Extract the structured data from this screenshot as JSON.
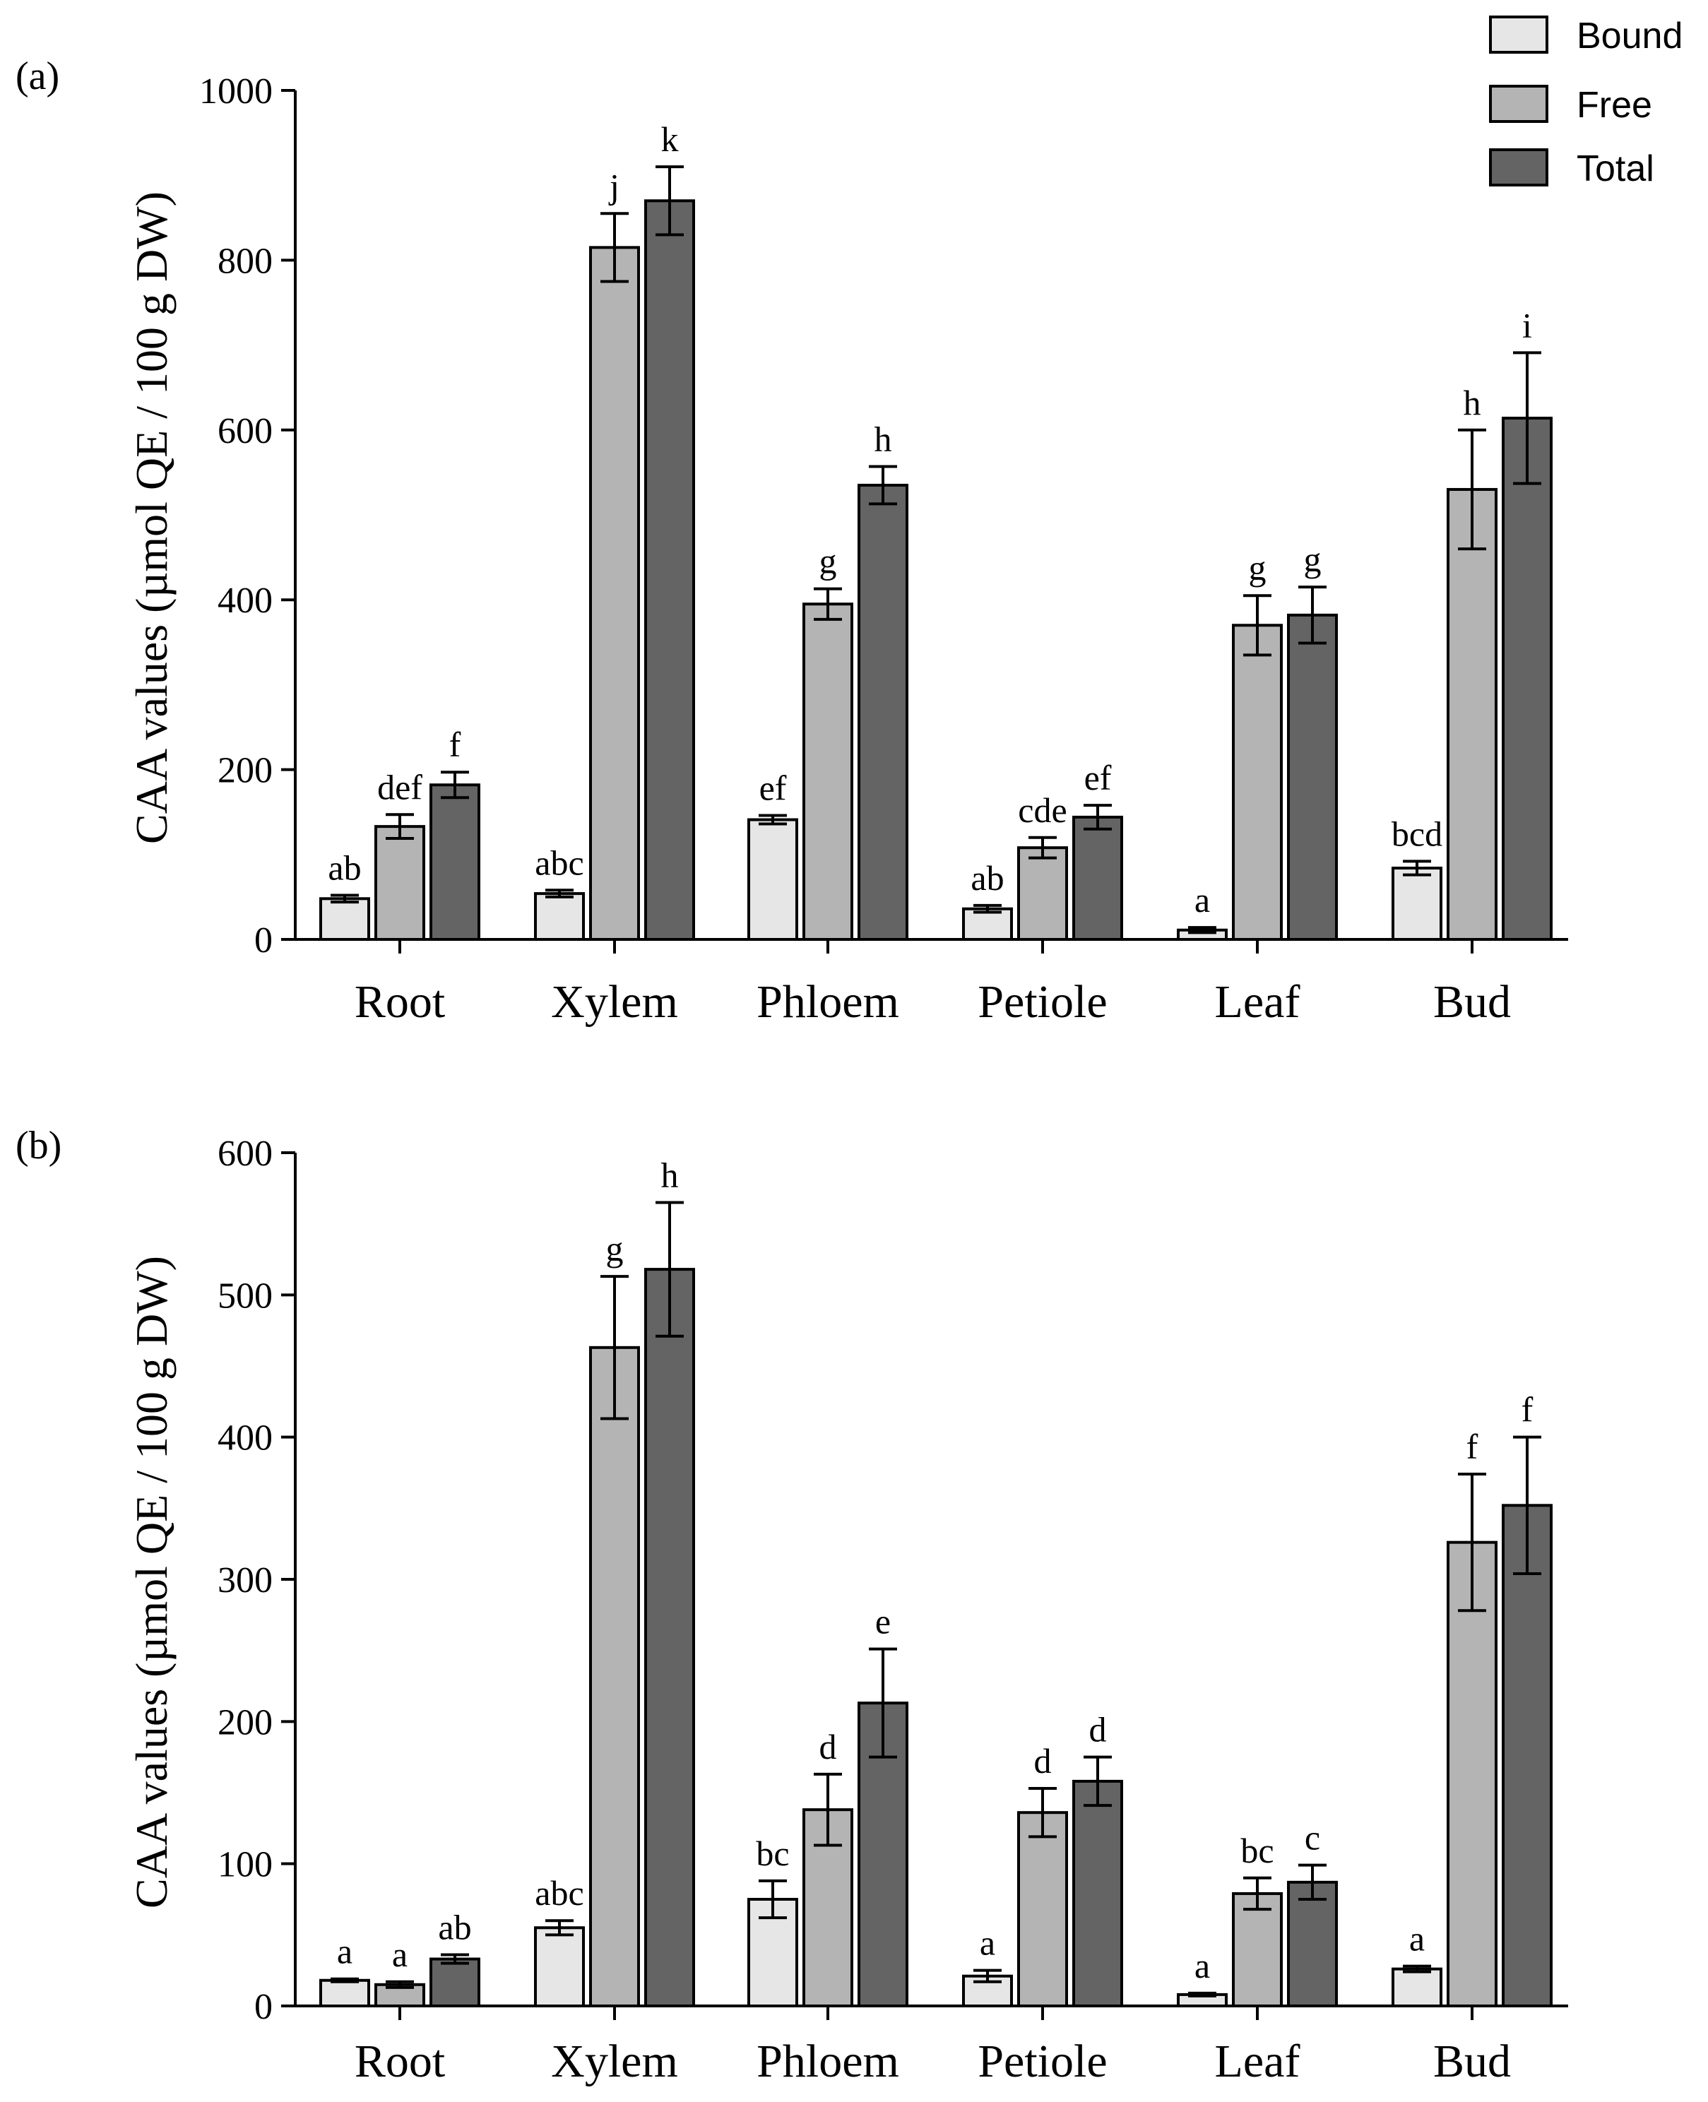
{
  "legend": [
    {
      "name": "Bound",
      "color": "#e6e6e6"
    },
    {
      "name": "Free",
      "color": "#b4b4b4"
    },
    {
      "name": "Total",
      "color": "#646464"
    }
  ],
  "chart_data": [
    {
      "type": "bar",
      "panel_label": "(a)",
      "ylabel": "CAA values (µmol QE / 100 g DW)",
      "xlabel": "",
      "ylim": [
        0,
        1000
      ],
      "yticks": [
        0,
        200,
        400,
        600,
        800,
        1000
      ],
      "categories": [
        "Root",
        "Xylem",
        "Phloem",
        "Petiole",
        "Leaf",
        "Bud"
      ],
      "series": [
        {
          "name": "Bound",
          "values": [
            48,
            54,
            141,
            36,
            11,
            84
          ],
          "errors": [
            4,
            4,
            5,
            4,
            3,
            8
          ],
          "letters": [
            "ab",
            "abc",
            "ef",
            "ab",
            "a",
            "bcd"
          ]
        },
        {
          "name": "Free",
          "values": [
            133,
            815,
            395,
            108,
            370,
            530
          ],
          "errors": [
            14,
            40,
            18,
            12,
            35,
            70
          ],
          "letters": [
            "def",
            "j",
            "g",
            "cde",
            "g",
            "h"
          ]
        },
        {
          "name": "Total",
          "values": [
            182,
            870,
            535,
            144,
            382,
            614
          ],
          "errors": [
            15,
            40,
            22,
            14,
            33,
            77
          ],
          "letters": [
            "f",
            "k",
            "h",
            "ef",
            "g",
            "i"
          ]
        }
      ]
    },
    {
      "type": "bar",
      "panel_label": "(b)",
      "ylabel": "CAA values (µmol QE / 100 g DW)",
      "xlabel": "",
      "ylim": [
        0,
        600
      ],
      "yticks": [
        0,
        100,
        200,
        300,
        400,
        500,
        600
      ],
      "categories": [
        "Root",
        "Xylem",
        "Phloem",
        "Petiole",
        "Leaf",
        "Bud"
      ],
      "series": [
        {
          "name": "Bound",
          "values": [
            18,
            55,
            75,
            21,
            8,
            26
          ],
          "errors": [
            1,
            5,
            13,
            4,
            1,
            2
          ],
          "letters": [
            "a",
            "abc",
            "bc",
            "a",
            "a",
            "a"
          ]
        },
        {
          "name": "Free",
          "values": [
            15,
            463,
            138,
            136,
            79,
            326
          ],
          "errors": [
            2,
            50,
            25,
            17,
            11,
            48
          ],
          "letters": [
            "a",
            "g",
            "d",
            "d",
            "bc",
            "f"
          ]
        },
        {
          "name": "Total",
          "values": [
            33,
            518,
            213,
            158,
            87,
            352
          ],
          "errors": [
            3,
            47,
            38,
            17,
            12,
            48
          ],
          "letters": [
            "ab",
            "h",
            "e",
            "d",
            "c",
            "f"
          ]
        }
      ]
    }
  ]
}
